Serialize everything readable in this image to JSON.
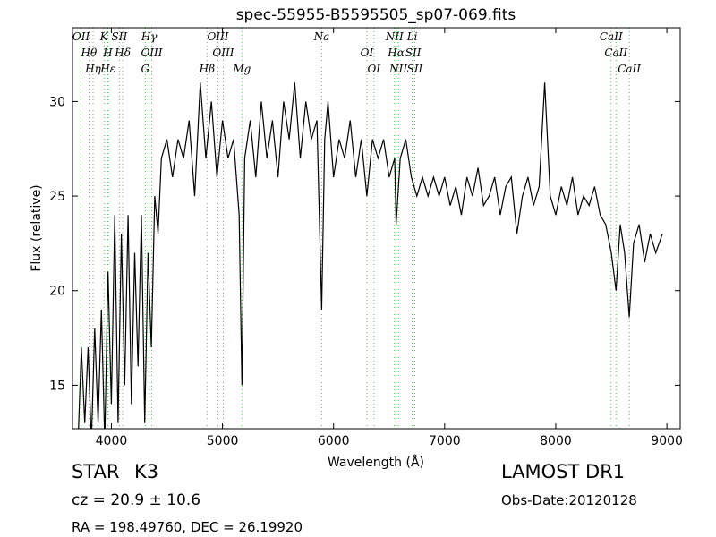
{
  "chart_data": {
    "type": "line",
    "title": "spec-55955-B5595505_sp07-069.fits",
    "x_label": "Wavelength (Å)",
    "y_label": "Flux (relative)",
    "xlim": [
      3650,
      9120
    ],
    "ylim": [
      12.7,
      33.9
    ],
    "xticks": [
      4000,
      5000,
      6000,
      7000,
      8000,
      9000
    ],
    "yticks": [
      15,
      20,
      25,
      30
    ],
    "grid": false,
    "color": "#000000",
    "line_color": "#5cb85c",
    "x": [
      3700,
      3730,
      3760,
      3790,
      3820,
      3850,
      3880,
      3910,
      3940,
      3970,
      4000,
      4030,
      4060,
      4090,
      4120,
      4150,
      4180,
      4210,
      4240,
      4270,
      4300,
      4330,
      4360,
      4390,
      4420,
      4450,
      4500,
      4550,
      4600,
      4650,
      4700,
      4750,
      4800,
      4850,
      4900,
      4950,
      5000,
      5050,
      5100,
      5150,
      5175,
      5200,
      5250,
      5300,
      5350,
      5400,
      5450,
      5500,
      5550,
      5600,
      5650,
      5700,
      5750,
      5800,
      5850,
      5893,
      5920,
      5950,
      6000,
      6050,
      6100,
      6150,
      6200,
      6250,
      6300,
      6350,
      6400,
      6450,
      6500,
      6550,
      6563,
      6600,
      6650,
      6700,
      6750,
      6800,
      6850,
      6900,
      6950,
      7000,
      7050,
      7100,
      7150,
      7200,
      7250,
      7300,
      7350,
      7400,
      7450,
      7500,
      7550,
      7600,
      7650,
      7700,
      7750,
      7800,
      7850,
      7900,
      7950,
      8000,
      8050,
      8100,
      8150,
      8200,
      8250,
      8300,
      8350,
      8400,
      8450,
      8500,
      8542,
      8580,
      8620,
      8662,
      8700,
      8750,
      8800,
      8850,
      8900,
      8960
    ],
    "values": [
      12,
      17,
      13,
      17,
      12,
      18,
      13,
      19,
      12,
      21,
      14,
      24,
      13,
      23,
      15,
      24,
      14,
      22,
      16,
      24,
      13,
      22,
      17,
      25,
      23,
      27,
      28,
      26,
      28,
      27,
      29,
      25,
      31,
      27,
      30,
      26,
      29,
      27,
      28,
      24,
      15,
      27,
      29,
      26,
      30,
      27,
      29,
      26,
      30,
      28,
      31,
      27,
      30,
      28,
      29,
      19,
      28,
      30,
      26,
      28,
      27,
      29,
      26,
      28,
      25,
      28,
      27,
      28,
      26,
      27,
      23.5,
      27,
      28,
      26,
      25,
      26,
      25,
      26,
      25,
      26,
      24.5,
      25.5,
      24,
      26,
      25,
      26.5,
      24.5,
      25,
      26,
      24,
      25.5,
      26,
      23,
      25,
      26,
      24.5,
      25.5,
      31,
      25,
      24,
      25.5,
      24.5,
      26,
      24,
      25,
      24.5,
      25.5,
      24,
      23.5,
      22,
      20,
      23.5,
      22,
      18.6,
      22.5,
      23.5,
      21.5,
      23,
      22,
      23
    ],
    "lines": [
      {
        "wavelength": 3727,
        "label": "OII"
      },
      {
        "wavelength": 3798,
        "label": "Hθ"
      },
      {
        "wavelength": 3835,
        "label": "Hη"
      },
      {
        "wavelength": 3934,
        "label": "K"
      },
      {
        "wavelength": 3968,
        "label": "H"
      },
      {
        "wavelength": 3970,
        "label": "Hε"
      },
      {
        "wavelength": 4072,
        "label": "SII"
      },
      {
        "wavelength": 4102,
        "label": "Hδ"
      },
      {
        "wavelength": 4305,
        "label": "G"
      },
      {
        "wavelength": 4340,
        "label": "Hγ"
      },
      {
        "wavelength": 4363,
        "label": "OIII"
      },
      {
        "wavelength": 4861,
        "label": "Hβ"
      },
      {
        "wavelength": 4959,
        "label": "OIII"
      },
      {
        "wavelength": 5007,
        "label": "OIII"
      },
      {
        "wavelength": 5175,
        "label": "Mg"
      },
      {
        "wavelength": 5893,
        "label": "Na"
      },
      {
        "wavelength": 6300,
        "label": "OI"
      },
      {
        "wavelength": 6363,
        "label": "OI"
      },
      {
        "wavelength": 6548,
        "label": "NII"
      },
      {
        "wavelength": 6563,
        "label": "Hα"
      },
      {
        "wavelength": 6583,
        "label": "NII"
      },
      {
        "wavelength": 6708,
        "label": "Li"
      },
      {
        "wavelength": 6716,
        "label": "SII"
      },
      {
        "wavelength": 6731,
        "label": "SII"
      },
      {
        "wavelength": 8498,
        "label": "CaII"
      },
      {
        "wavelength": 8542,
        "label": "CaII"
      },
      {
        "wavelength": 8662,
        "label": "CaII"
      }
    ],
    "object_class": "STAR",
    "subclass": "K3",
    "redshift": "cz = 20.9 ± 10.6",
    "survey": "LAMOST DR1",
    "obs_date": "Obs-Date:20120128",
    "coords": "RA = 198.49760, DEC = 26.19920"
  }
}
